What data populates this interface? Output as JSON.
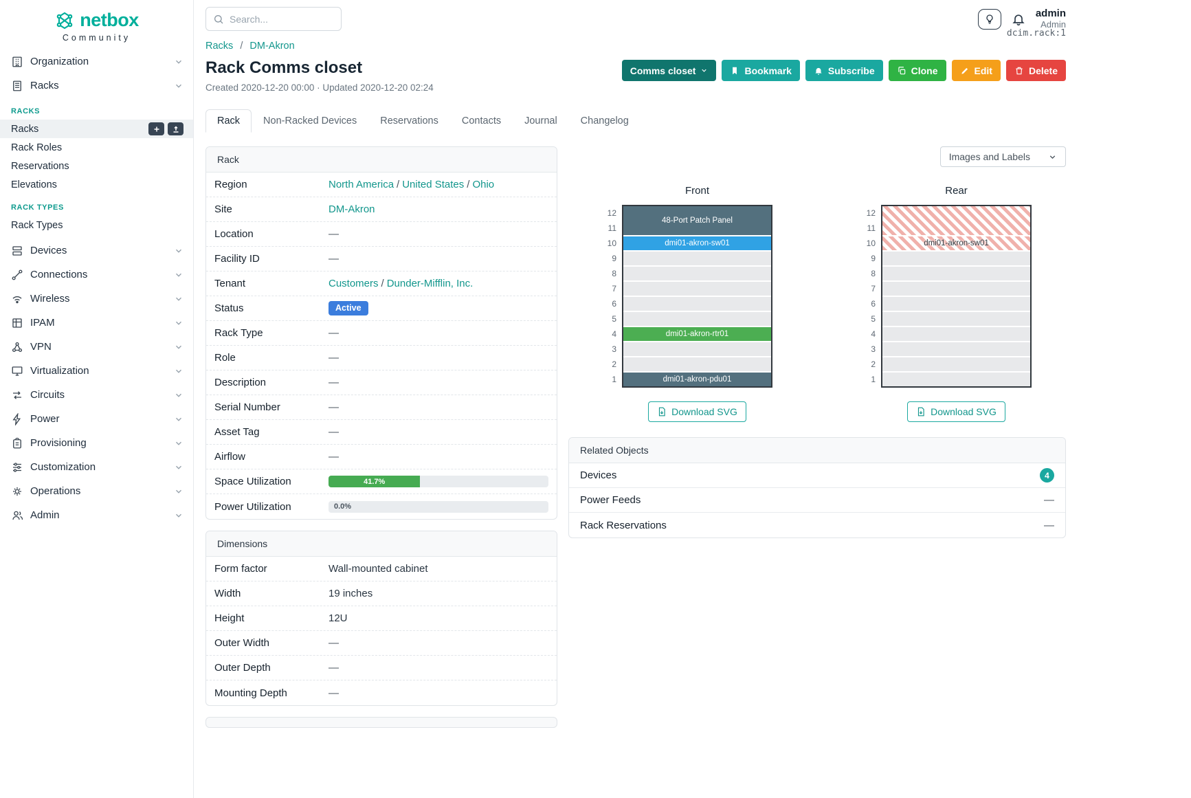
{
  "colors": {
    "brand_teal": "#00af9b",
    "link_teal": "#12968c",
    "button_teal": "#1aa8a0",
    "button_primary_dark": "#10756d",
    "button_green": "#2fb344",
    "button_orange": "#f59f1a",
    "button_red": "#e64540",
    "status_blue": "#3b7ddd",
    "progress_green": "#46ab52",
    "device_dark": "#53707e",
    "device_blue": "#30a2e4",
    "device_green": "#4cae52"
  },
  "brand": {
    "name": "netbox",
    "subtitle": "Community"
  },
  "topbar": {
    "search_placeholder": "Search...",
    "user_name": "admin",
    "user_role": "Admin"
  },
  "sidebar": {
    "items": [
      {
        "label": "Organization"
      },
      {
        "label": "Racks"
      },
      {
        "label": "Devices"
      },
      {
        "label": "Connections"
      },
      {
        "label": "Wireless"
      },
      {
        "label": "IPAM"
      },
      {
        "label": "VPN"
      },
      {
        "label": "Virtualization"
      },
      {
        "label": "Circuits"
      },
      {
        "label": "Power"
      },
      {
        "label": "Provisioning"
      },
      {
        "label": "Customization"
      },
      {
        "label": "Operations"
      },
      {
        "label": "Admin"
      }
    ],
    "racks_group": {
      "title": "RACKS",
      "items": [
        {
          "label": "Racks",
          "active": true
        },
        {
          "label": "Rack Roles"
        },
        {
          "label": "Reservations"
        },
        {
          "label": "Elevations"
        }
      ]
    },
    "rack_types_group": {
      "title": "RACK TYPES",
      "items": [
        {
          "label": "Rack Types"
        }
      ]
    }
  },
  "header": {
    "breadcrumb": {
      "crumbs": [
        "Racks",
        "DM-Akron"
      ],
      "separator": "/"
    },
    "object_ref": "dcim.rack:1",
    "title": "Rack Comms closet",
    "meta": "Created 2020-12-20 00:00 · Updated 2020-12-20 02:24",
    "buttons": {
      "primary": "Comms closet",
      "bookmark": "Bookmark",
      "subscribe": "Subscribe",
      "clone": "Clone",
      "edit": "Edit",
      "delete": "Delete"
    },
    "tabs": [
      {
        "label": "Rack",
        "active": true
      },
      {
        "label": "Non-Racked Devices"
      },
      {
        "label": "Reservations"
      },
      {
        "label": "Contacts"
      },
      {
        "label": "Journal"
      },
      {
        "label": "Changelog"
      }
    ]
  },
  "rack_panel": {
    "title": "Rack",
    "region": {
      "label": "Region",
      "links": [
        "North America",
        "United States",
        "Ohio"
      ],
      "separator": "/"
    },
    "site": {
      "label": "Site",
      "link": "DM-Akron"
    },
    "location": {
      "label": "Location",
      "value": "—"
    },
    "facility_id": {
      "label": "Facility ID",
      "value": "—"
    },
    "tenant": {
      "label": "Tenant",
      "links": [
        "Customers",
        "Dunder-Mifflin, Inc."
      ],
      "separator": "/"
    },
    "status": {
      "label": "Status",
      "value": "Active"
    },
    "rack_type": {
      "label": "Rack Type",
      "value": "—"
    },
    "role": {
      "label": "Role",
      "value": "—"
    },
    "description": {
      "label": "Description",
      "value": "—"
    },
    "serial_number": {
      "label": "Serial Number",
      "value": "—"
    },
    "asset_tag": {
      "label": "Asset Tag",
      "value": "—"
    },
    "airflow": {
      "label": "Airflow",
      "value": "—"
    },
    "space_utilization": {
      "label": "Space Utilization",
      "percent": 41.7,
      "text": "41.7%"
    },
    "power_utilization": {
      "label": "Power Utilization",
      "percent": 0,
      "text": "0.0%"
    }
  },
  "dimensions_panel": {
    "title": "Dimensions",
    "rows": [
      {
        "label": "Form factor",
        "value": "Wall-mounted cabinet"
      },
      {
        "label": "Width",
        "value": "19 inches"
      },
      {
        "label": "Height",
        "value": "12U"
      },
      {
        "label": "Outer Width",
        "value": "—"
      },
      {
        "label": "Outer Depth",
        "value": "—"
      },
      {
        "label": "Mounting Depth",
        "value": "—"
      }
    ]
  },
  "elevations": {
    "options_button": "Images and Labels",
    "download_button": "Download SVG",
    "unit_labels": [
      "12",
      "11",
      "10",
      "9",
      "8",
      "7",
      "6",
      "5",
      "4",
      "3",
      "2",
      "1"
    ],
    "front": {
      "title": "Front",
      "slots": [
        {
          "units": "12-11",
          "type": "device",
          "label": "48-Port Patch Panel"
        },
        {
          "units": "10",
          "type": "device",
          "label": "dmi01-akron-sw01"
        },
        {
          "units": "9",
          "type": "empty"
        },
        {
          "units": "8",
          "type": "empty"
        },
        {
          "units": "7",
          "type": "empty"
        },
        {
          "units": "6",
          "type": "empty"
        },
        {
          "units": "5",
          "type": "empty"
        },
        {
          "units": "4",
          "type": "device",
          "label": "dmi01-akron-rtr01"
        },
        {
          "units": "3",
          "type": "empty"
        },
        {
          "units": "2",
          "type": "empty"
        },
        {
          "units": "1",
          "type": "device",
          "label": "dmi01-akron-pdu01"
        }
      ]
    },
    "rear": {
      "title": "Rear",
      "slots": [
        {
          "units": "12-11",
          "type": "occupied-rear",
          "label": ""
        },
        {
          "units": "10",
          "type": "occupied-rear",
          "label": "dmi01-akron-sw01"
        },
        {
          "units": "9",
          "type": "empty"
        },
        {
          "units": "8",
          "type": "empty"
        },
        {
          "units": "7",
          "type": "empty"
        },
        {
          "units": "6",
          "type": "empty"
        },
        {
          "units": "5",
          "type": "empty"
        },
        {
          "units": "4",
          "type": "empty"
        },
        {
          "units": "3",
          "type": "empty"
        },
        {
          "units": "2",
          "type": "empty"
        },
        {
          "units": "1",
          "type": "empty"
        }
      ]
    }
  },
  "related_objects": {
    "title": "Related Objects",
    "rows": [
      {
        "label": "Devices",
        "count": "4"
      },
      {
        "label": "Power Feeds",
        "value": "—"
      },
      {
        "label": "Rack Reservations",
        "value": "—"
      }
    ]
  }
}
